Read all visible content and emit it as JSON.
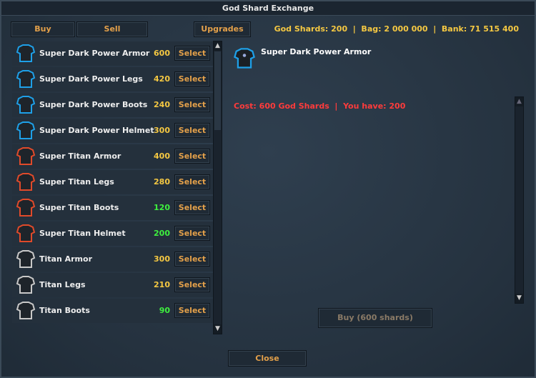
{
  "window": {
    "title": "God Shard Exchange"
  },
  "tabs": {
    "buy": "Buy",
    "sell": "Sell",
    "upgrades": "Upgrades"
  },
  "status": "God Shards: 200  |  Bag: 2 000 000  |  Bank: 71 515 400",
  "colors": {
    "affordable": "#3ef03e",
    "unaffordable": "#f5c842",
    "cost_error": "#ff3b3b",
    "button_text": "#e3a04a"
  },
  "items": [
    {
      "name": "Super Dark Power Armor",
      "price": "600",
      "affordable": false,
      "icon": "dark-armor-icon",
      "tint": "#1ea0e8",
      "select": "Select"
    },
    {
      "name": "Super Dark Power Legs",
      "price": "420",
      "affordable": false,
      "icon": "dark-legs-icon",
      "tint": "#1ea0e8",
      "select": "Select"
    },
    {
      "name": "Super Dark Power Boots",
      "price": "240",
      "affordable": false,
      "icon": "dark-boots-icon",
      "tint": "#1ea0e8",
      "select": "Select"
    },
    {
      "name": "Super Dark Power Helmet",
      "price": "300",
      "affordable": false,
      "icon": "dark-helmet-icon",
      "tint": "#1ea0e8",
      "select": "Select"
    },
    {
      "name": "Super Titan Armor",
      "price": "400",
      "affordable": false,
      "icon": "titan-armor-icon",
      "tint": "#e04a2a",
      "select": "Select"
    },
    {
      "name": "Super Titan Legs",
      "price": "280",
      "affordable": false,
      "icon": "titan-legs-icon",
      "tint": "#e04a2a",
      "select": "Select"
    },
    {
      "name": "Super Titan Boots",
      "price": "120",
      "affordable": true,
      "icon": "titan-boots-icon",
      "tint": "#e04a2a",
      "select": "Select"
    },
    {
      "name": "Super Titan Helmet",
      "price": "200",
      "affordable": true,
      "icon": "titan-helmet-icon",
      "tint": "#e04a2a",
      "select": "Select"
    },
    {
      "name": "Titan Armor",
      "price": "300",
      "affordable": false,
      "icon": "armor-icon",
      "tint": "#c8c8c8",
      "select": "Select"
    },
    {
      "name": "Titan Legs",
      "price": "210",
      "affordable": false,
      "icon": "legs-icon",
      "tint": "#c8c8c8",
      "select": "Select"
    },
    {
      "name": "Titan Boots",
      "price": "90",
      "affordable": true,
      "icon": "boots-icon",
      "tint": "#c8c8c8",
      "select": "Select"
    }
  ],
  "detail": {
    "name": "Super Dark Power Armor",
    "cost": "Cost: 600 God Shards  |  You have: 200",
    "buy_label": "Buy (600 shards)"
  },
  "close_label": "Close"
}
